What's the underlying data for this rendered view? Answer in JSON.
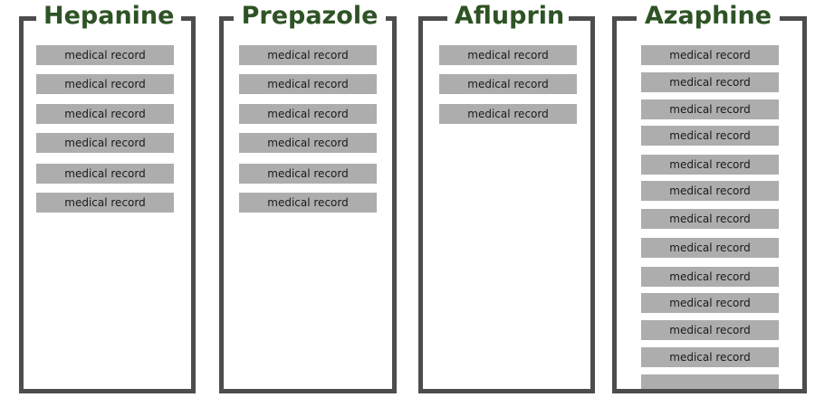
{
  "columns": [
    {
      "title": "Hepanine",
      "records": [
        "medical record",
        "medical record",
        "medical record",
        "medical record",
        "medical record",
        "medical record"
      ]
    },
    {
      "title": "Prepazole",
      "records": [
        "medical record",
        "medical record",
        "medical record",
        "medical record",
        "medical record",
        "medical record"
      ]
    },
    {
      "title": "Afluprin",
      "records": [
        "medical record",
        "medical record",
        "medical record"
      ]
    },
    {
      "title": "Azaphine",
      "records": [
        "medical record",
        "medical record",
        "medical record",
        "medical record",
        "medical record",
        "medical record",
        "medical record",
        "medical record",
        "medical record",
        "medical record",
        "medical record",
        "medical record",
        ""
      ]
    }
  ],
  "colors": {
    "frame": "#4d4d4d",
    "title": "#2e5325",
    "record_fill": "#adadad",
    "record_text": "#1a1a1a"
  }
}
